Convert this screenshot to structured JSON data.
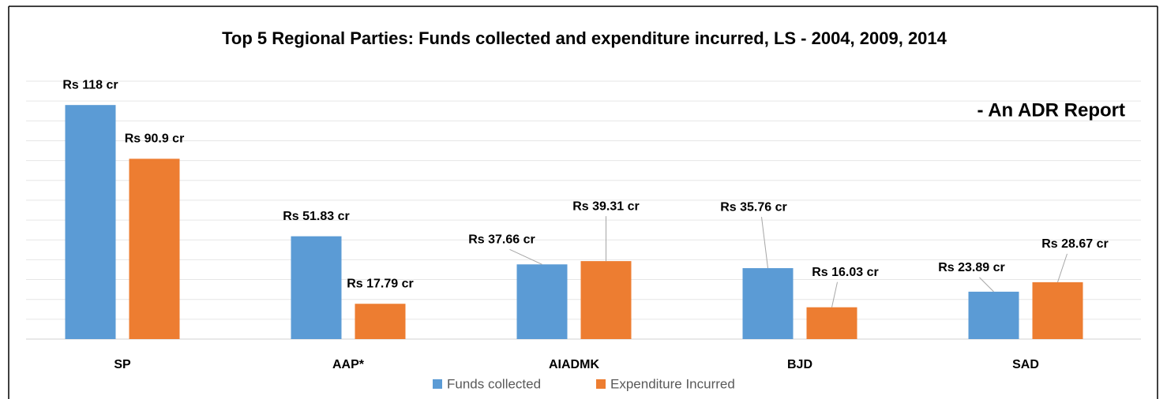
{
  "chart_data": {
    "type": "bar",
    "title": "Top 5 Regional Parties: Funds collected and expenditure incurred, LS - 2004, 2009, 2014",
    "annotation": "- An ADR Report",
    "categories": [
      "SP",
      "AAP*",
      "AIADMK",
      "BJD",
      "SAD"
    ],
    "series": [
      {
        "name": "Funds collected",
        "color": "#5b9bd5",
        "values": [
          118,
          51.83,
          37.66,
          35.76,
          23.89
        ],
        "value_labels": [
          "Rs 118 cr",
          "Rs 51.83 cr",
          "Rs 37.66 cr",
          "Rs 35.76 cr",
          "Rs 23.89 cr"
        ]
      },
      {
        "name": "Expenditure Incurred",
        "color": "#ed7d31",
        "values": [
          90.9,
          17.79,
          39.31,
          16.03,
          28.67
        ],
        "value_labels": [
          "Rs 90.9 cr",
          "Rs 17.79 cr",
          "Rs 39.31 cr",
          "Rs 16.03 cr",
          "Rs 28.67 cr"
        ]
      }
    ],
    "ylim": [
      0,
      130
    ],
    "yticks": [
      0,
      10,
      20,
      30,
      40,
      50,
      60,
      70,
      80,
      90,
      100,
      110,
      120,
      130
    ],
    "grid": true,
    "legend": "bottom"
  }
}
